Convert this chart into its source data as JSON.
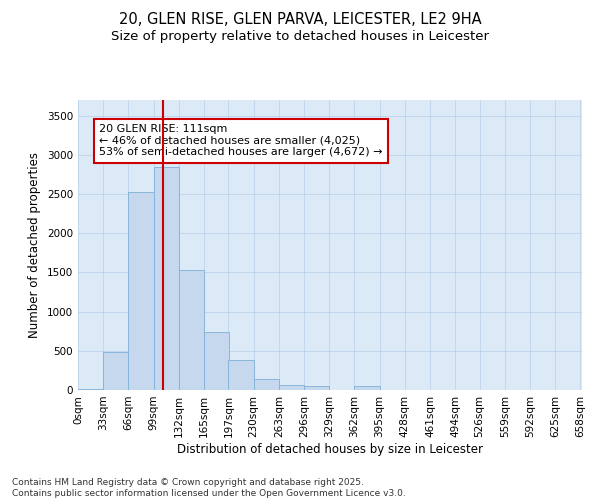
{
  "title_line1": "20, GLEN RISE, GLEN PARVA, LEICESTER, LE2 9HA",
  "title_line2": "Size of property relative to detached houses in Leicester",
  "xlabel": "Distribution of detached houses by size in Leicester",
  "ylabel": "Number of detached properties",
  "bar_color": "#c5d8ee",
  "bar_edge_color": "#7fb0d8",
  "plot_bg_color": "#dce9f7",
  "vline_value": 111,
  "vline_color": "#cc0000",
  "annotation_text": "20 GLEN RISE: 111sqm\n← 46% of detached houses are smaller (4,025)\n53% of semi-detached houses are larger (4,672) →",
  "annotation_box_color": "#ffffff",
  "annotation_border_color": "#cc0000",
  "bins_left": [
    0,
    33,
    66,
    99,
    132,
    165,
    197,
    230,
    263,
    296,
    329,
    362,
    395,
    428,
    461,
    494,
    526,
    559,
    592,
    625
  ],
  "bin_width": 33,
  "bar_heights": [
    10,
    490,
    2520,
    2850,
    1530,
    740,
    385,
    145,
    70,
    45,
    5,
    55,
    0,
    0,
    0,
    0,
    0,
    0,
    0,
    0
  ],
  "ylim": [
    0,
    3700
  ],
  "yticks": [
    0,
    500,
    1000,
    1500,
    2000,
    2500,
    3000,
    3500
  ],
  "tick_labels": [
    "0sqm",
    "33sqm",
    "66sqm",
    "99sqm",
    "132sqm",
    "165sqm",
    "197sqm",
    "230sqm",
    "263sqm",
    "296sqm",
    "329sqm",
    "362sqm",
    "395sqm",
    "428sqm",
    "461sqm",
    "494sqm",
    "526sqm",
    "559sqm",
    "592sqm",
    "625sqm",
    "658sqm"
  ],
  "footer_text": "Contains HM Land Registry data © Crown copyright and database right 2025.\nContains public sector information licensed under the Open Government Licence v3.0.",
  "title_fontsize": 10.5,
  "subtitle_fontsize": 9.5,
  "axis_label_fontsize": 8.5,
  "tick_fontsize": 7.5,
  "annotation_fontsize": 8,
  "footer_fontsize": 6.5
}
